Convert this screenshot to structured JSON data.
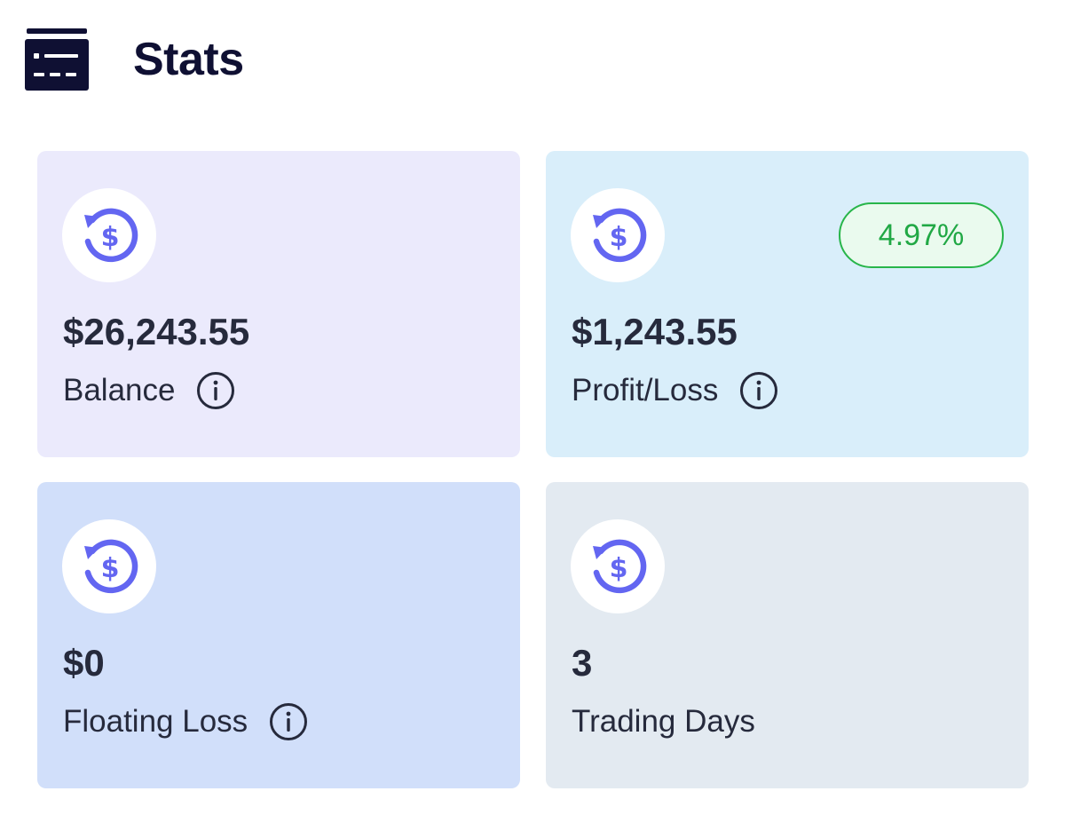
{
  "header": {
    "title": "Stats",
    "icon": "dashboard-card-icon"
  },
  "colors": {
    "accent": "#6366f1",
    "positive": "#22b24c",
    "title": "#0f1033"
  },
  "cards": [
    {
      "key": "balance",
      "icon": "dollar-refresh-icon",
      "value": "$26,243.55",
      "label": "Balance",
      "has_info": true,
      "background": "#ebeafc"
    },
    {
      "key": "profit_loss",
      "icon": "dollar-refresh-icon",
      "value": "$1,243.55",
      "label": "Profit/Loss",
      "has_info": true,
      "badge": "4.97%",
      "background": "#d9eefa"
    },
    {
      "key": "floating_loss",
      "icon": "dollar-refresh-icon",
      "value": "$0",
      "label": "Floating Loss",
      "has_info": true,
      "background": "#d1dffa"
    },
    {
      "key": "trading_days",
      "icon": "dollar-refresh-icon",
      "value": "3",
      "label": "Trading Days",
      "has_info": false,
      "background": "#e3eaf1"
    }
  ]
}
